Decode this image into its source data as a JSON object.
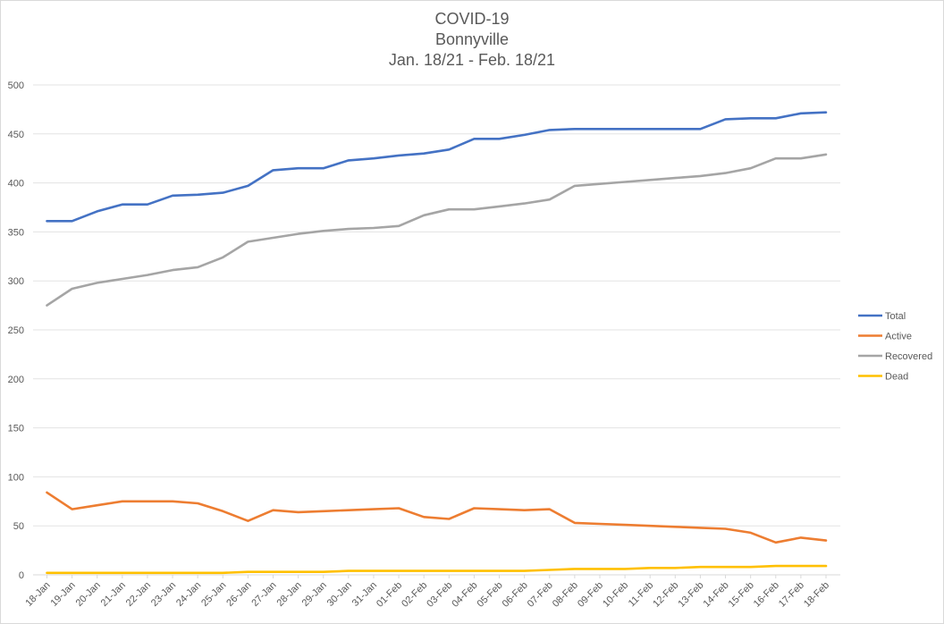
{
  "chart_data": {
    "type": "line",
    "title": "COVID-19",
    "subtitle_lines": [
      "Bonnyville",
      "Jan. 18/21 - Feb. 18/21"
    ],
    "xlabel": "",
    "ylabel": "",
    "ylim": [
      0,
      500
    ],
    "yticks": [
      0,
      50,
      100,
      150,
      200,
      250,
      300,
      350,
      400,
      450,
      500
    ],
    "grid": true,
    "legend_position": "right",
    "categories": [
      "18-Jan",
      "19-Jan",
      "20-Jan",
      "21-Jan",
      "22-Jan",
      "23-Jan",
      "24-Jan",
      "25-Jan",
      "26-Jan",
      "27-Jan",
      "28-Jan",
      "29-Jan",
      "30-Jan",
      "31-Jan",
      "01-Feb",
      "02-Feb",
      "03-Feb",
      "04-Feb",
      "05-Feb",
      "06-Feb",
      "07-Feb",
      "08-Feb",
      "09-Feb",
      "10-Feb",
      "11-Feb",
      "12-Feb",
      "13-Feb",
      "14-Feb",
      "15-Feb",
      "16-Feb",
      "17-Feb",
      "18-Feb"
    ],
    "series": [
      {
        "name": "Total",
        "color": "#4472C4",
        "values": [
          361,
          361,
          371,
          378,
          378,
          387,
          388,
          390,
          397,
          413,
          415,
          415,
          423,
          425,
          428,
          430,
          434,
          445,
          445,
          449,
          454,
          455,
          455,
          455,
          455,
          455,
          455,
          465,
          466,
          466,
          471,
          472
        ]
      },
      {
        "name": "Active",
        "color": "#ED7D31",
        "values": [
          84,
          67,
          71,
          75,
          75,
          75,
          73,
          65,
          55,
          66,
          64,
          65,
          66,
          67,
          68,
          59,
          57,
          68,
          67,
          66,
          67,
          53,
          52,
          51,
          50,
          49,
          48,
          47,
          43,
          33,
          38,
          35
        ]
      },
      {
        "name": "Recovered",
        "color": "#A5A5A5",
        "values": [
          275,
          292,
          298,
          302,
          306,
          311,
          314,
          324,
          340,
          344,
          348,
          351,
          353,
          354,
          356,
          367,
          373,
          373,
          376,
          379,
          383,
          397,
          399,
          401,
          403,
          405,
          407,
          410,
          415,
          425,
          425,
          429
        ]
      },
      {
        "name": "Dead",
        "color": "#FFC000",
        "values": [
          2,
          2,
          2,
          2,
          2,
          2,
          2,
          2,
          3,
          3,
          3,
          3,
          4,
          4,
          4,
          4,
          4,
          4,
          4,
          4,
          5,
          6,
          6,
          6,
          7,
          7,
          8,
          8,
          8,
          9,
          9,
          9
        ]
      }
    ]
  }
}
